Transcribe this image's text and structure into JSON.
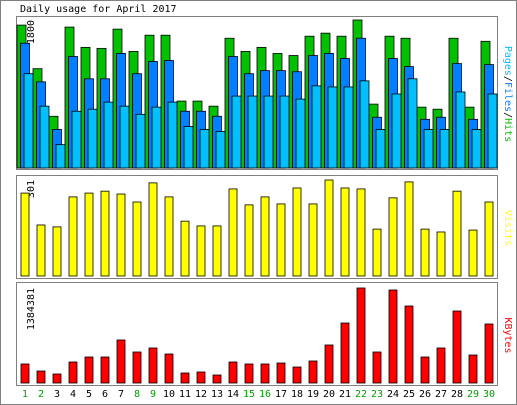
{
  "chart_data": [
    {
      "type": "bar",
      "title": "Daily usage for April 2017",
      "ylim": [
        0,
        1800
      ],
      "yticks": [
        1800
      ],
      "legend_separator": "/",
      "series": [
        {
          "name": "Hits",
          "color": "#00c000",
          "values": [
            1738,
            1208,
            629,
            1714,
            1467,
            1455,
            1689,
            1418,
            1615,
            1615,
            814,
            814,
            752,
            1578,
            1418,
            1467,
            1393,
            1368,
            1603,
            1640,
            1603,
            1800,
            777,
            1603,
            1578,
            740,
            715,
            1578,
            740,
            1541
          ]
        },
        {
          "name": "Files",
          "color": "#0080ff",
          "values": [
            1517,
            1048,
            469,
            1356,
            1085,
            1085,
            1393,
            1147,
            1295,
            1307,
            690,
            690,
            629,
            1356,
            1147,
            1184,
            1184,
            1171,
            1368,
            1393,
            1332,
            1578,
            617,
            1332,
            1233,
            592,
            617,
            1270,
            592,
            1258
          ]
        },
        {
          "name": "Pages",
          "color": "#00c0ff",
          "values": [
            1147,
            752,
            284,
            690,
            715,
            801,
            752,
            653,
            740,
            801,
            505,
            468,
            444,
            875,
            875,
            875,
            875,
            838,
            999,
            986,
            986,
            1060,
            468,
            900,
            1085,
            468,
            468,
            925,
            468,
            900
          ]
        }
      ]
    },
    {
      "type": "bar",
      "ylim": [
        0,
        301
      ],
      "yticks": [
        301
      ],
      "series": [
        {
          "name": "Visits",
          "color": "#ffff00",
          "values": [
            260,
            160,
            154,
            248,
            260,
            266,
            257,
            232,
            292,
            248,
            172,
            157,
            157,
            273,
            223,
            248,
            226,
            276,
            226,
            301,
            276,
            273,
            147,
            245,
            295,
            147,
            138,
            266,
            144,
            232
          ]
        }
      ]
    },
    {
      "type": "bar",
      "ylim": [
        0,
        1384381
      ],
      "yticks": [
        1384381
      ],
      "categories": [
        "1",
        "2",
        "3",
        "4",
        "5",
        "6",
        "7",
        "8",
        "9",
        "10",
        "11",
        "12",
        "13",
        "14",
        "15",
        "16",
        "17",
        "18",
        "19",
        "20",
        "21",
        "22",
        "23",
        "24",
        "25",
        "26",
        "27",
        "28",
        "29",
        "30"
      ],
      "category_colors": [
        "#00a000",
        "#00a000",
        "#000000",
        "#000000",
        "#000000",
        "#000000",
        "#000000",
        "#00a000",
        "#00a000",
        "#000000",
        "#000000",
        "#000000",
        "#000000",
        "#000000",
        "#00a000",
        "#00a000",
        "#000000",
        "#000000",
        "#000000",
        "#000000",
        "#000000",
        "#00a000",
        "#00a000",
        "#000000",
        "#000000",
        "#000000",
        "#000000",
        "#000000",
        "#00a000",
        "#00a000"
      ],
      "series": [
        {
          "name": "KBytes",
          "color": "#ff0000",
          "values": [
            276868,
            174864,
            131148,
            306012,
            378872,
            378872,
            626596,
            451732,
            510020,
            422588,
            145720,
            160292,
            116576,
            306012,
            276868,
            276868,
            291440,
            233152,
            320584,
            553736,
            874320,
            1384381,
            451732,
            1355196,
            1122044,
            378872,
            510020,
            1049184,
            408016,
            859748
          ]
        }
      ]
    }
  ]
}
